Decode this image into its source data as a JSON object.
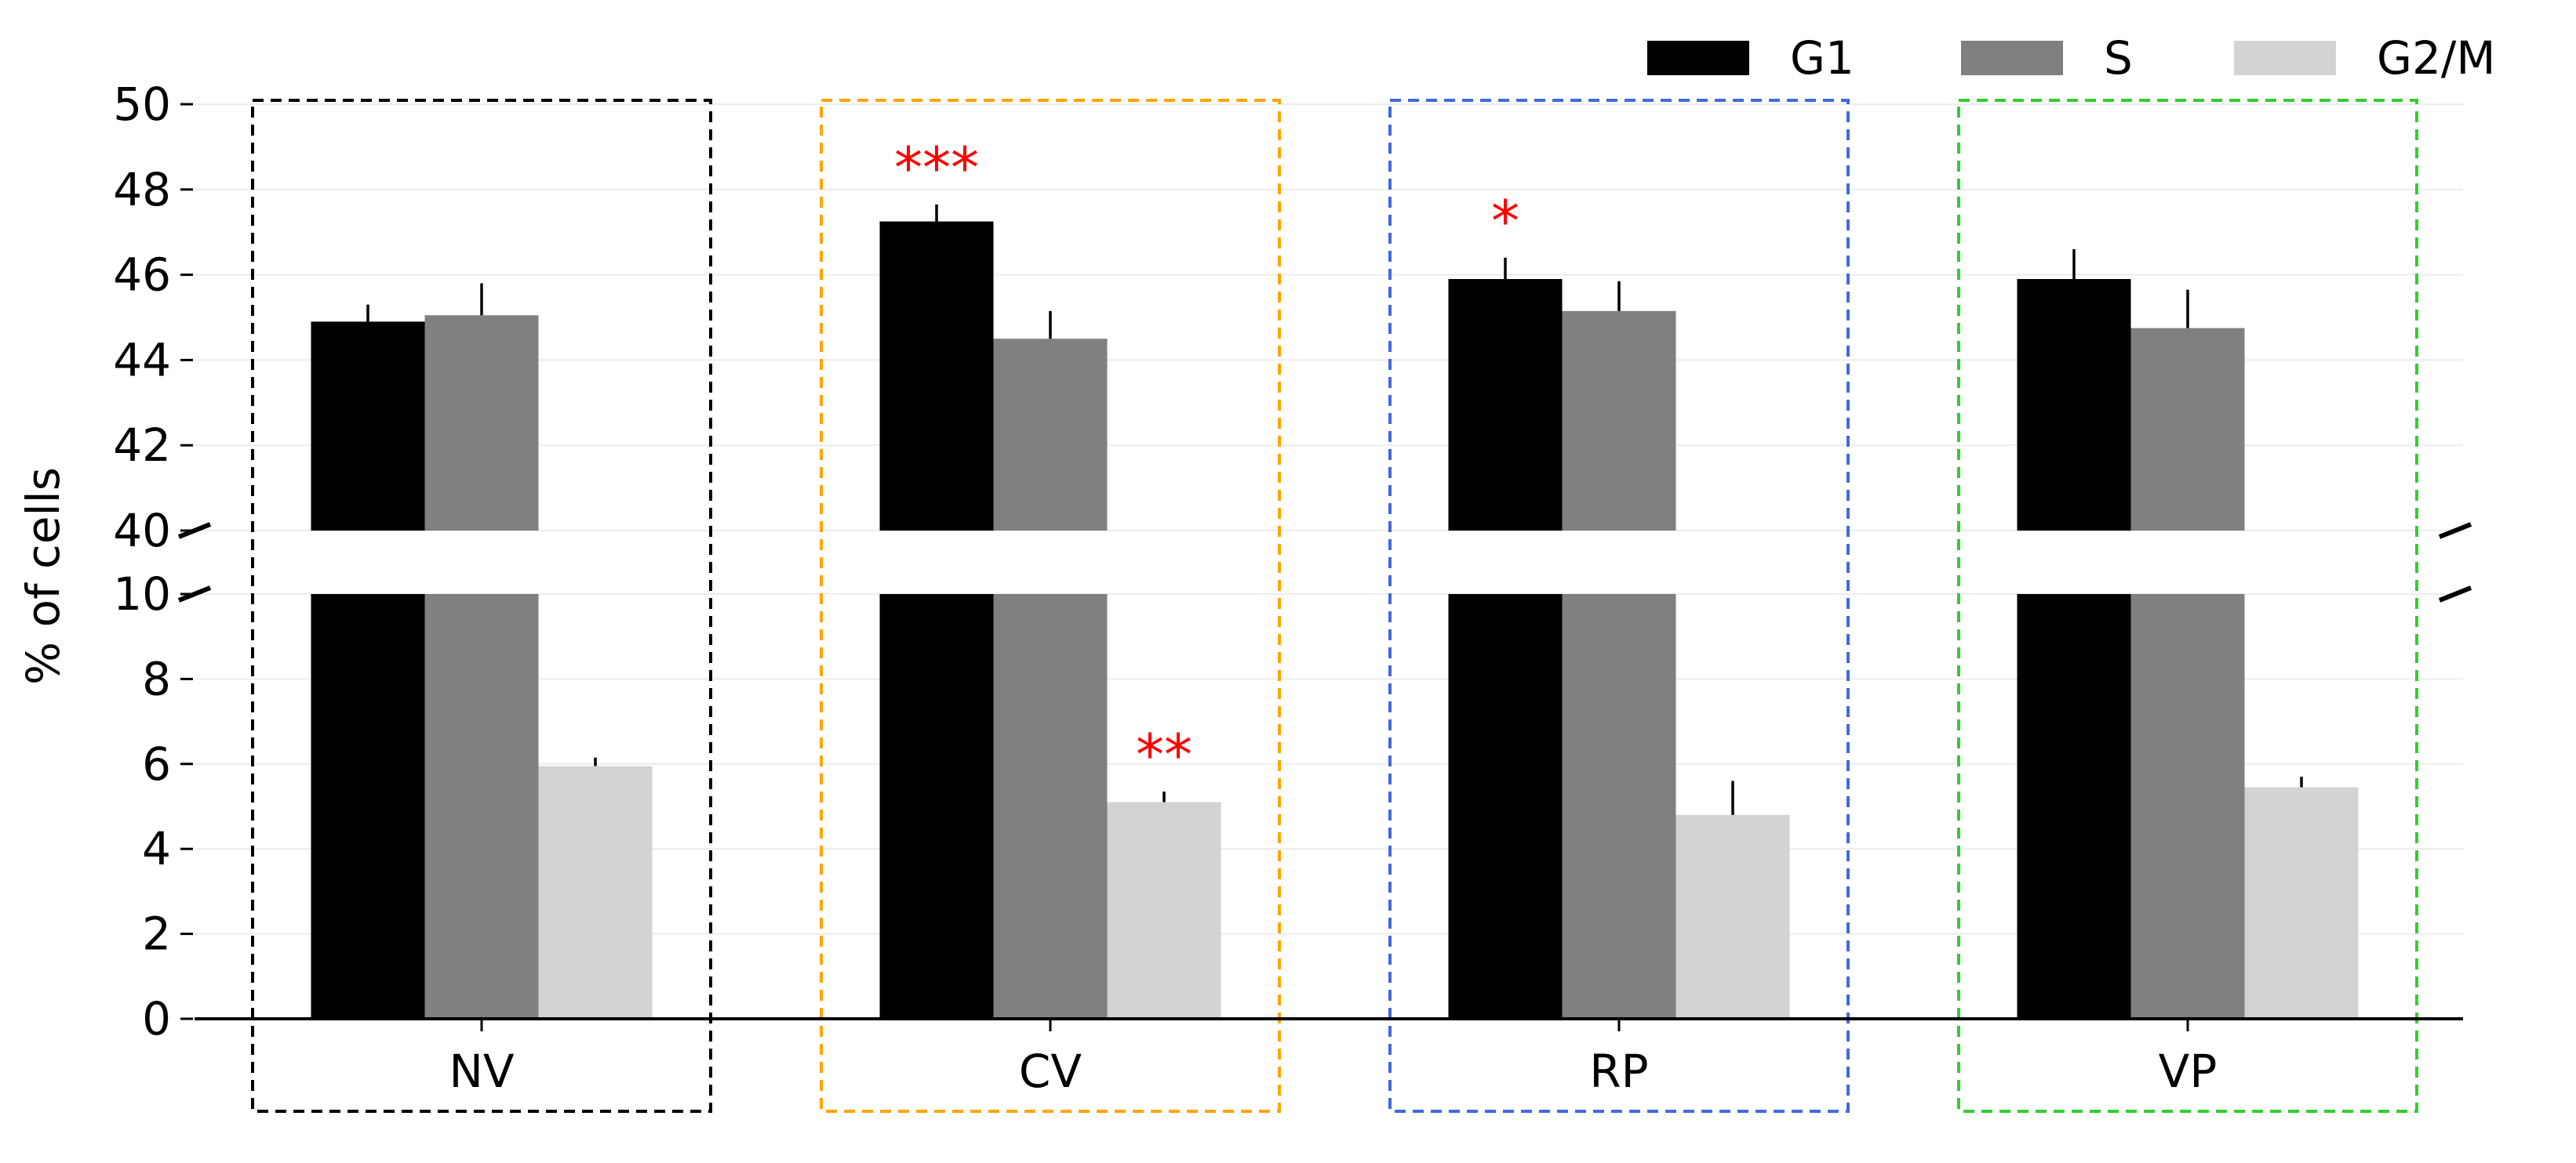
{
  "chart_data": {
    "type": "bar",
    "title": "",
    "xlabel": "",
    "ylabel": "% of cells",
    "categories": [
      "NV",
      "CV",
      "RP",
      "VP"
    ],
    "series": [
      {
        "name": "G1",
        "values": [
          44.9,
          47.25,
          45.9,
          45.9
        ],
        "errors": [
          0.4,
          0.4,
          0.5,
          0.7
        ]
      },
      {
        "name": "S",
        "values": [
          45.05,
          44.5,
          45.15,
          44.75
        ],
        "errors": [
          0.75,
          0.65,
          0.7,
          0.9
        ]
      },
      {
        "name": "G2/M",
        "values": [
          5.95,
          5.1,
          4.8,
          5.45
        ],
        "errors": [
          0.2,
          0.25,
          0.8,
          0.25
        ]
      }
    ],
    "colors": {
      "G1": "#000000",
      "S": "#808080",
      "G2/M": "#d3d3d3"
    },
    "broken_axis": {
      "lower": {
        "ylim": [
          0,
          10
        ],
        "ticks": [
          "0",
          "2",
          "4",
          "6",
          "8",
          "10"
        ]
      },
      "upper": {
        "ylim": [
          40,
          50
        ],
        "ticks": [
          "40",
          "42",
          "44",
          "46",
          "48",
          "50"
        ]
      }
    },
    "grid": true,
    "legend": {
      "position": "top-right",
      "orientation": "horizontal"
    },
    "group_boxes": [
      {
        "category": "NV",
        "color": "#000000"
      },
      {
        "category": "CV",
        "color": "#ffa500"
      },
      {
        "category": "RP",
        "color": "#4169e1"
      },
      {
        "category": "VP",
        "color": "#32cd32"
      }
    ],
    "annotations": [
      {
        "text": "***",
        "category": "CV",
        "series": "G1",
        "color": "#ff0000"
      },
      {
        "text": "**",
        "category": "CV",
        "series": "G2/M",
        "color": "#ff0000"
      },
      {
        "text": "*",
        "category": "RP",
        "series": "G1",
        "color": "#ff0000"
      }
    ]
  }
}
